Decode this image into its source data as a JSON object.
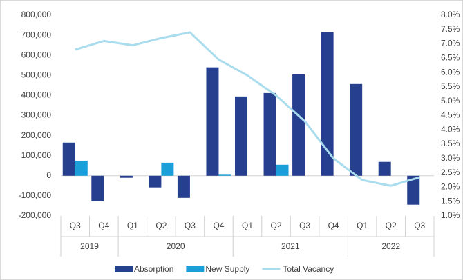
{
  "chart_data": {
    "type": "bar-line",
    "categories": [
      "Q3",
      "Q4",
      "Q1",
      "Q2",
      "Q3",
      "Q4",
      "Q1",
      "Q2",
      "Q3",
      "Q4",
      "Q1",
      "Q2",
      "Q3"
    ],
    "year_groups": [
      {
        "label": "2019",
        "span": 2
      },
      {
        "label": "2020",
        "span": 4
      },
      {
        "label": "2021",
        "span": 4
      },
      {
        "label": "2022",
        "span": 3
      }
    ],
    "series": [
      {
        "name": "Absorption",
        "color": "#263f8f",
        "type": "bar",
        "values": [
          165000,
          -127000,
          -10000,
          -58000,
          -110000,
          540000,
          395000,
          412000,
          505000,
          715000,
          457000,
          69000,
          -144000
        ]
      },
      {
        "name": "New Supply",
        "color": "#1a9fd9",
        "type": "bar",
        "values": [
          75000,
          null,
          null,
          65000,
          null,
          5000,
          null,
          55000,
          null,
          null,
          null,
          null,
          null
        ]
      },
      {
        "name": "Total Vacancy",
        "color": "#a9dcec",
        "type": "line",
        "axis": "y2",
        "values": [
          6.8,
          7.1,
          6.95,
          7.2,
          7.4,
          6.45,
          5.9,
          5.2,
          4.3,
          3.0,
          2.25,
          2.05,
          2.35
        ]
      }
    ],
    "ylim": [
      -200000,
      800000
    ],
    "yticks": [
      {
        "value": -200000,
        "label": "-200,000"
      },
      {
        "value": -100000,
        "label": "-100,000"
      },
      0,
      {
        "value": 100000,
        "label": "100,000"
      },
      {
        "value": 200000,
        "label": "200,000"
      },
      {
        "value": 300000,
        "label": "300,000"
      },
      {
        "value": 400000,
        "label": "400,000"
      },
      {
        "value": 500000,
        "label": "500,000"
      },
      {
        "value": 600000,
        "label": "600,000"
      },
      {
        "value": 700000,
        "label": "700,000"
      },
      {
        "value": 800000,
        "label": "800,000"
      }
    ],
    "y2lim": [
      1.0,
      8.0
    ],
    "y2ticks": [
      {
        "value": 1.0,
        "label": "1.0%"
      },
      {
        "value": 1.5,
        "label": "1.5%"
      },
      {
        "value": 2.0,
        "label": "2.0%"
      },
      {
        "value": 2.5,
        "label": "2.5%"
      },
      {
        "value": 3.0,
        "label": "3.0%"
      },
      {
        "value": 3.5,
        "label": "3.5%"
      },
      {
        "value": 4.0,
        "label": "4.0%"
      },
      {
        "value": 4.5,
        "label": "4.5%"
      },
      {
        "value": 5.0,
        "label": "5.0%"
      },
      {
        "value": 5.5,
        "label": "5.5%"
      },
      {
        "value": 6.0,
        "label": "6.0%"
      },
      {
        "value": 6.5,
        "label": "6.5%"
      },
      {
        "value": 7.0,
        "label": "7.0%"
      },
      {
        "value": 7.5,
        "label": "7.5%"
      },
      {
        "value": 8.0,
        "label": "8.0%"
      }
    ]
  }
}
